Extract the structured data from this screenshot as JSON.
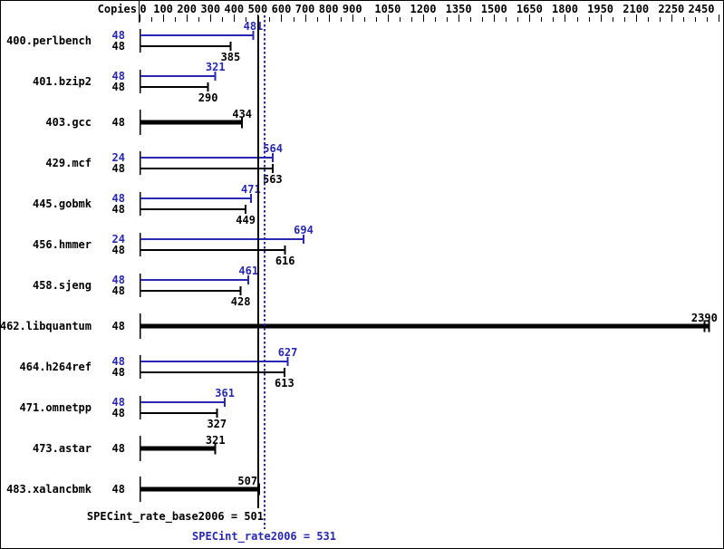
{
  "chart_data": {
    "type": "bar",
    "orientation": "horizontal",
    "copies_header": "Copies",
    "axis": {
      "min": 0,
      "max": 2450,
      "labeled_ticks": [
        0,
        100,
        200,
        300,
        400,
        500,
        600,
        700,
        800,
        900,
        1050,
        1200,
        1350,
        1500,
        1650,
        1800,
        1950,
        2100,
        2250,
        2450
      ],
      "minor_tick_step": 50
    },
    "colors": {
      "peak": "#2828b2",
      "base": "#000000"
    },
    "benchmarks": [
      {
        "name": "400.perlbench",
        "peak": {
          "copies": 48,
          "value": 481
        },
        "base": {
          "copies": 48,
          "value": 385
        }
      },
      {
        "name": "401.bzip2",
        "peak": {
          "copies": 48,
          "value": 321
        },
        "base": {
          "copies": 48,
          "value": 290
        }
      },
      {
        "name": "403.gcc",
        "single": true,
        "copies": 48,
        "value": 434
      },
      {
        "name": "429.mcf",
        "peak": {
          "copies": 24,
          "value": 564
        },
        "base": {
          "copies": 48,
          "value": 563
        }
      },
      {
        "name": "445.gobmk",
        "peak": {
          "copies": 48,
          "value": 471
        },
        "base": {
          "copies": 48,
          "value": 449
        }
      },
      {
        "name": "456.hmmer",
        "peak": {
          "copies": 24,
          "value": 694
        },
        "base": {
          "copies": 48,
          "value": 616
        }
      },
      {
        "name": "458.sjeng",
        "peak": {
          "copies": 48,
          "value": 461
        },
        "base": {
          "copies": 48,
          "value": 428
        }
      },
      {
        "name": "462.libquantum",
        "single": true,
        "copies": 48,
        "value": 2390,
        "double_cap": true
      },
      {
        "name": "464.h264ref",
        "peak": {
          "copies": 48,
          "value": 627
        },
        "base": {
          "copies": 48,
          "value": 613
        }
      },
      {
        "name": "471.omnetpp",
        "peak": {
          "copies": 48,
          "value": 361
        },
        "base": {
          "copies": 48,
          "value": 327
        }
      },
      {
        "name": "473.astar",
        "single": true,
        "copies": 48,
        "value": 321
      },
      {
        "name": "483.xalancbmk",
        "single": true,
        "copies": 48,
        "value": 507,
        "label_dx": -13
      }
    ],
    "summary": {
      "base": {
        "label": "SPECint_rate_base2006",
        "value": 501,
        "text": "SPECint_rate_base2006 = 501"
      },
      "peak": {
        "label": "SPECint_rate2006",
        "value": 531,
        "text": "SPECint_rate2006 = 531"
      }
    }
  }
}
